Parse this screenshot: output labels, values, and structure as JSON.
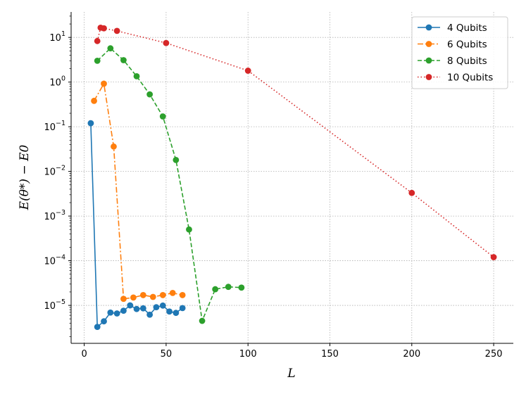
{
  "chart_data": {
    "type": "line",
    "title": "",
    "xlabel": "L",
    "ylabel": "E(θ*) − E0",
    "xlim": [
      -8,
      262
    ],
    "ylim_log10": [
      -5.85,
      1.57
    ],
    "yscale": "log",
    "grid": true,
    "legend_position": "top-right",
    "x_ticks": [
      0,
      50,
      100,
      150,
      200,
      250
    ],
    "x_tick_labels": [
      "0",
      "50",
      "100",
      "150",
      "200",
      "250"
    ],
    "y_ticks": [
      1,
      0,
      -1,
      -2,
      -3,
      -4,
      -5
    ],
    "y_tick_labels": [
      {
        "base": "10",
        "exp": "1"
      },
      {
        "base": "10",
        "exp": "0"
      },
      {
        "base": "10",
        "exp": "−1"
      },
      {
        "base": "10",
        "exp": "−2"
      },
      {
        "base": "10",
        "exp": "−3"
      },
      {
        "base": "10",
        "exp": "−4"
      },
      {
        "base": "10",
        "exp": "−5"
      }
    ],
    "series": [
      {
        "name": "4 Qubits",
        "color": "#1f77b4",
        "dash": "solid",
        "x": [
          4,
          8,
          12,
          16,
          20,
          24,
          28,
          32,
          36,
          40,
          44,
          48,
          52,
          56,
          60
        ],
        "y": [
          0.12,
          3.3e-06,
          4.4e-06,
          6.9e-06,
          6.6e-06,
          7.6e-06,
          1e-05,
          8.3e-06,
          8.6e-06,
          6.2e-06,
          9.1e-06,
          9.9e-06,
          7.3e-06,
          6.8e-06,
          8.7e-06
        ]
      },
      {
        "name": "6 Qubits",
        "color": "#ff7f0e",
        "dash": "dashdot",
        "x": [
          6,
          12,
          18,
          24,
          30,
          36,
          42,
          48,
          54,
          60
        ],
        "y": [
          0.38,
          0.92,
          0.036,
          1.4e-05,
          1.5e-05,
          1.7e-05,
          1.55e-05,
          1.7e-05,
          1.9e-05,
          1.7e-05
        ]
      },
      {
        "name": "8 Qubits",
        "color": "#2ca02c",
        "dash": "dashed",
        "x": [
          8,
          16,
          24,
          32,
          40,
          48,
          56,
          64,
          72,
          80,
          88,
          96
        ],
        "y": [
          3.0,
          5.7,
          3.1,
          1.35,
          0.53,
          0.17,
          0.018,
          0.0005,
          4.5e-06,
          2.3e-05,
          2.6e-05,
          2.5e-05
        ]
      },
      {
        "name": "10 Qubits",
        "color": "#d62728",
        "dash": "dotted",
        "x": [
          8,
          10,
          12,
          20,
          50,
          100,
          200,
          250
        ],
        "y": [
          8.3,
          16.5,
          16.0,
          14.0,
          7.5,
          1.8,
          0.0033,
          0.00012
        ]
      }
    ]
  }
}
